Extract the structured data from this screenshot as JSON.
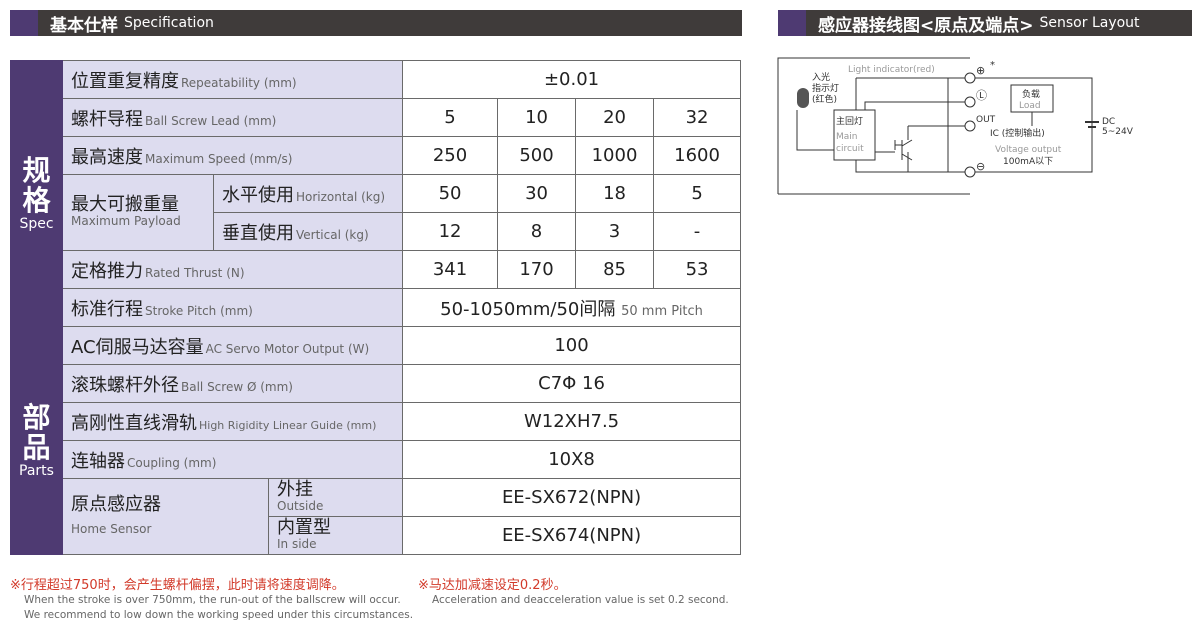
{
  "spec_header": {
    "zh": "基本仕样",
    "en": "Specification"
  },
  "sensor_header": {
    "zh": "感应器接线图<原点及端点>",
    "en": "Sensor Layout"
  },
  "sections": {
    "spec_zh": "规格",
    "spec_en": "Spec",
    "parts_zh": "部品",
    "parts_en": "Parts"
  },
  "rows": {
    "repeatability": {
      "zh": "位置重复精度",
      "en": "Repeatability (mm)",
      "value": "±0.01"
    },
    "lead": {
      "zh": "螺杆导程",
      "en": "Ball Screw Lead (mm)",
      "values": [
        "5",
        "10",
        "20",
        "32"
      ]
    },
    "speed": {
      "zh": "最高速度",
      "en": "Maximum Speed (mm/s)",
      "values": [
        "250",
        "500",
        "1000",
        "1600"
      ]
    },
    "payload": {
      "zh": "最大可搬重量",
      "en": "Maximum Payload",
      "horizontal": {
        "zh": "水平使用",
        "en": "Horizontal (kg)",
        "values": [
          "50",
          "30",
          "18",
          "5"
        ]
      },
      "vertical": {
        "zh": "垂直使用",
        "en": "Vertical (kg)",
        "values": [
          "12",
          "8",
          "3",
          "-"
        ]
      }
    },
    "thrust": {
      "zh": "定格推力",
      "en": "Rated Thrust (N)",
      "values": [
        "341",
        "170",
        "85",
        "53"
      ]
    },
    "stroke": {
      "zh": "标准行程",
      "en": "Stroke Pitch (mm)",
      "value": "50-1050mm/50间隔",
      "value_en": "50 mm Pitch"
    },
    "motor": {
      "zh": "AC伺服马达容量",
      "en": "AC Servo Motor Output (W)",
      "value": "100"
    },
    "screw": {
      "zh": "滚珠螺杆外径",
      "en": "Ball Screw Ø (mm)",
      "value": "C7Φ 16"
    },
    "guide": {
      "zh": "高刚性直线滑轨",
      "en": "High Rigidity Linear Guide (mm)",
      "value": "W12XH7.5"
    },
    "coupling": {
      "zh": "连轴器",
      "en": "Coupling (mm)",
      "value": "10X8"
    },
    "sensor": {
      "zh": "原点感应器",
      "en": "Home Sensor",
      "outside": {
        "zh": "外挂",
        "en": "Outside",
        "value": "EE-SX672(NPN)"
      },
      "inside": {
        "zh": "内置型",
        "en": "In side",
        "value": "EE-SX674(NPN)"
      }
    }
  },
  "notes": {
    "n1_zh": "※行程超过750时，会产生螺杆偏摆，此时请将速度调降。",
    "n1_en1": "When the stroke is over 750mm, the run-out of the ballscrew will occur.",
    "n1_en2": "We recommend to low down the working speed under this circumstances.",
    "n2_zh": "※马达加减速设定0.2秒。",
    "n2_en": "Acceleration and deacceleration value is set 0.2 second."
  },
  "diagram": {
    "light_indicator": "Light indicator(red)",
    "led_zh1": "入光",
    "led_zh2": "指示灯",
    "led_zh3": "(红色)",
    "main_zh": "主回灯",
    "main_en1": "Main",
    "main_en2": "circuit",
    "plus": "⊕",
    "star": "*",
    "l": "Ⓛ",
    "out": "OUT",
    "minus": "⊖",
    "load_zh": "负载",
    "load_en": "Load",
    "ic": "IC (控制输出)",
    "vout": "Voltage output",
    "current": "100mA以下",
    "dc": "DC",
    "voltage": "5~24V"
  }
}
